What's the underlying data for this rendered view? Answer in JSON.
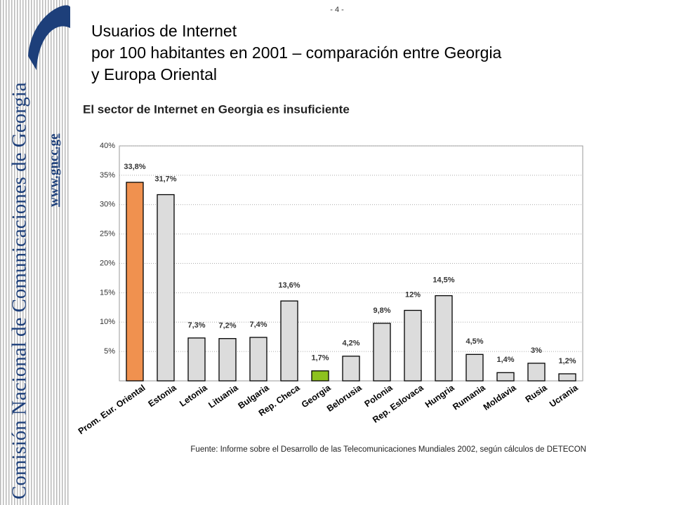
{
  "page_number": "- 4 -",
  "sidebar": {
    "title": "Comisión Nacional de Comunicaciones de Georgia",
    "url": "www.gncc.ge"
  },
  "title": [
    "Usuarios de Internet",
    "por 100 habitantes en 2001 – comparación entre Georgia",
    "y Europa Oriental"
  ],
  "chart_data": {
    "type": "bar",
    "title": "El sector de Internet en Georgia es insuficiente",
    "categories": [
      "Prom. Eur. Oriental",
      "Estonia",
      "Letonia",
      "Lituania",
      "Bulgaria",
      "Rep. Checa",
      "Georgia",
      "Belorusia",
      "Polonia",
      "Rep. Eslovaca",
      "Hungria",
      "Rumania",
      "Moldavia",
      "Rusia",
      "Ucrania"
    ],
    "values": [
      33.8,
      31.7,
      7.3,
      7.2,
      7.4,
      13.6,
      1.7,
      4.2,
      9.8,
      12,
      14.5,
      4.5,
      1.4,
      3,
      1.2
    ],
    "value_labels": [
      "33,8%",
      "31,7%",
      "7,3%",
      "7,2%",
      "7,4%",
      "13,6%",
      "1,7%",
      "4,2%",
      "9,8%",
      "12%",
      "14,5%",
      "4,5%",
      "1,4%",
      "3%",
      "1,2%"
    ],
    "colors": [
      "#f0914f",
      "#dcdcdc",
      "#dcdcdc",
      "#dcdcdc",
      "#dcdcdc",
      "#dcdcdc",
      "#8dc21f",
      "#dcdcdc",
      "#dcdcdc",
      "#dcdcdc",
      "#dcdcdc",
      "#dcdcdc",
      "#dcdcdc",
      "#dcdcdc",
      "#dcdcdc"
    ],
    "ylim": [
      0,
      40
    ],
    "yticks": [
      {
        "value": 5,
        "label": "5%"
      },
      {
        "value": 10,
        "label": "10%"
      },
      {
        "value": 15,
        "label": "15%"
      },
      {
        "value": 20,
        "label": "20%"
      },
      {
        "value": 25,
        "label": "25%"
      },
      {
        "value": 30,
        "label": "30%"
      },
      {
        "value": 35,
        "label": "35%"
      },
      {
        "value": 40,
        "label": "40%"
      }
    ],
    "grid": true,
    "source": "Fuente:   Informe sobre el Desarrollo de las Telecomunicaciones Mundiales 2002, según cálculos de DETECON"
  }
}
